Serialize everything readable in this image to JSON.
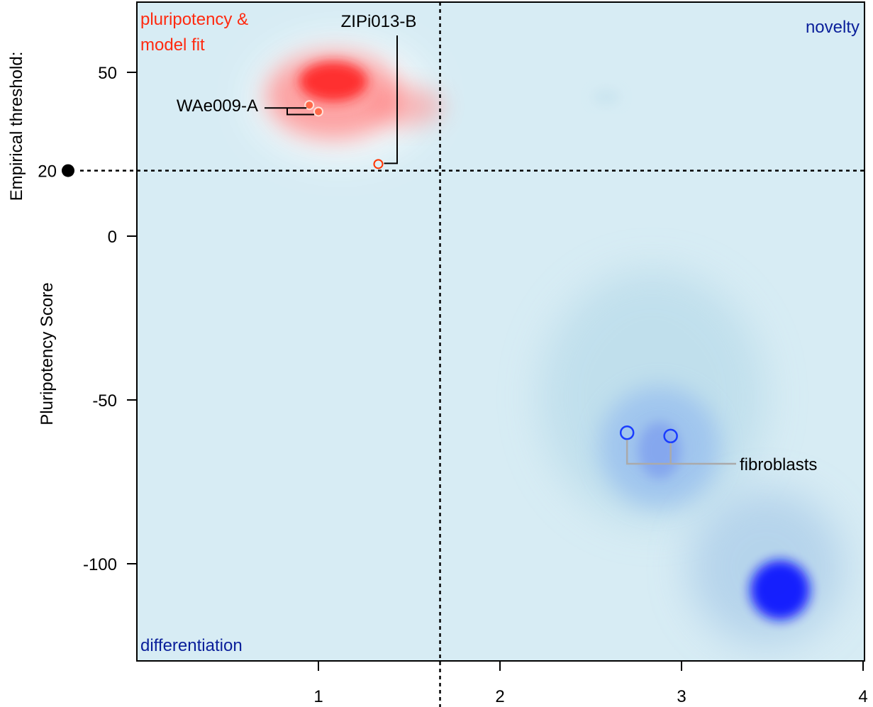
{
  "chart_data": {
    "type": "scatter",
    "title": "",
    "xlabel": "",
    "ylabel": "Pluripotency  Score",
    "threshold_label": "Empirical threshold:",
    "threshold_value": 20,
    "xlim": [
      0,
      4
    ],
    "ylim": [
      -129,
      72
    ],
    "x_ticks": [
      1,
      2,
      3,
      4
    ],
    "y_ticks": [
      50,
      0,
      -50,
      -100
    ],
    "x_threshold": 1.67,
    "grid": false,
    "colors": {
      "background": "#d7ecf4",
      "pluripotent": "#ff3300",
      "fibroblast": "#1a3cff",
      "density_red": "#ff1a1a",
      "density_blue": "#0a14ff",
      "corner_red": "#ff2a10",
      "corner_blue": "#0a1f9a",
      "connector_gray": "#aaaaaa"
    },
    "quadrant_labels": {
      "top_left": [
        "pluripotency &",
        "model fit"
      ],
      "top_right": "novelty",
      "bottom_left": "differentiation"
    },
    "points": [
      {
        "group": "pluripotent",
        "x": 0.95,
        "y": 40,
        "filled": true
      },
      {
        "group": "pluripotent",
        "x": 1.0,
        "y": 38,
        "filled": true
      },
      {
        "group": "pluripotent",
        "x": 1.33,
        "y": 22,
        "filled": false
      },
      {
        "group": "fibroblast",
        "x": 2.7,
        "y": -60,
        "filled": false
      },
      {
        "group": "fibroblast",
        "x": 2.94,
        "y": -61,
        "filled": false
      }
    ],
    "annotations": [
      {
        "text": "WAe009-A",
        "target_x": 0.97,
        "target_y": 39
      },
      {
        "text": "ZIPi013-B",
        "target_x": 1.33,
        "target_y": 22
      },
      {
        "text": "fibroblasts",
        "target_x": 2.82,
        "target_y": -70
      }
    ]
  }
}
